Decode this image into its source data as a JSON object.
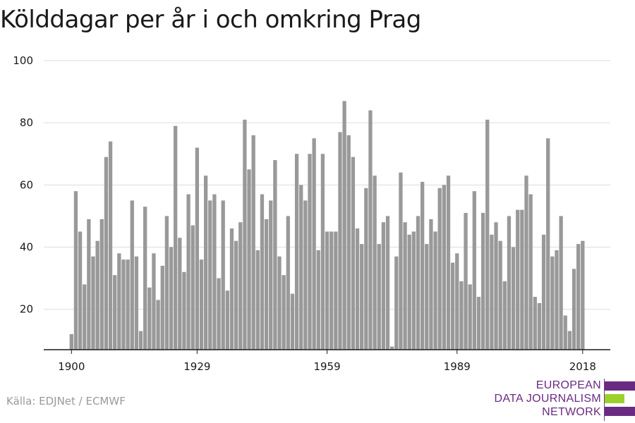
{
  "chart_data": {
    "type": "bar",
    "title": "Kölddagar per år i och omkring Prag",
    "xlabel": "",
    "ylabel": "",
    "x_start": 1900,
    "values": [
      12,
      58,
      45,
      28,
      49,
      37,
      42,
      49,
      69,
      74,
      31,
      38,
      36,
      36,
      55,
      37,
      13,
      53,
      27,
      38,
      23,
      34,
      50,
      40,
      79,
      43,
      32,
      57,
      47,
      72,
      36,
      63,
      55,
      57,
      30,
      55,
      26,
      46,
      42,
      48,
      81,
      65,
      76,
      39,
      57,
      49,
      55,
      68,
      37,
      31,
      50,
      25,
      70,
      60,
      55,
      70,
      75,
      39,
      70,
      45,
      45,
      45,
      77,
      87,
      76,
      69,
      46,
      41,
      59,
      84,
      63,
      41,
      48,
      50,
      8,
      37,
      64,
      48,
      44,
      45,
      50,
      61,
      41,
      49,
      45,
      59,
      60,
      63,
      35,
      38,
      29,
      51,
      28,
      58,
      24,
      51,
      81,
      44,
      48,
      42,
      29,
      50,
      40,
      52,
      52,
      63,
      57,
      24,
      22,
      44,
      75,
      37,
      39,
      50,
      18,
      13,
      33,
      41,
      42
    ],
    "x_ticks": [
      "1900",
      "1929",
      "1959",
      "1989",
      "2018"
    ],
    "x_tick_years": [
      1900,
      1929,
      1959,
      1989,
      2018
    ],
    "y_ticks": [
      "20",
      "40",
      "60",
      "80",
      "100"
    ],
    "y_tick_values": [
      20,
      40,
      60,
      80,
      100
    ],
    "ylim": [
      7,
      100
    ],
    "grid": "horizontal",
    "bar_color": "#999999"
  },
  "footer": {
    "source": "Källa: EDJNet / ECMWF"
  },
  "logo": {
    "line1": "EUROPEAN",
    "line2": "DATA JOURNALISM",
    "line3": "NETWORK",
    "color_purple": "#6a2a82",
    "color_green": "#9cd12b"
  }
}
